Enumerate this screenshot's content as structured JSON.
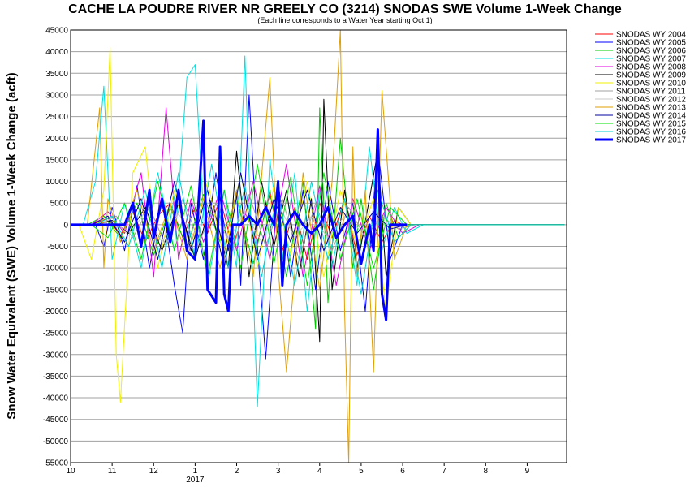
{
  "chart_data": {
    "type": "line",
    "title": "CACHE LA POUDRE RIVER NR GREELY CO (3214) SNODAS SWE Volume 1-Week Change",
    "subtitle": "(Each line corresponds to a Water Year starting Oct 1)",
    "ylabel": "Snow Water Equivalent (SWE) Volume 1-Week Change (acft)",
    "xlabel": "",
    "ylim": [
      -55000,
      45000
    ],
    "ytick_step": 5000,
    "xlim": [
      10,
      21.95
    ],
    "x_ticks": [
      {
        "value": 10,
        "label": "10"
      },
      {
        "value": 11,
        "label": "11"
      },
      {
        "value": 12,
        "label": "12"
      },
      {
        "value": 13,
        "label": "1"
      },
      {
        "value": 14,
        "label": "2"
      },
      {
        "value": 15,
        "label": "3"
      },
      {
        "value": 16,
        "label": "4"
      },
      {
        "value": 17,
        "label": "5"
      },
      {
        "value": 18,
        "label": "6"
      },
      {
        "value": 19,
        "label": "7"
      },
      {
        "value": 20,
        "label": "8"
      },
      {
        "value": 21,
        "label": "9"
      }
    ],
    "year_label": {
      "value": 13,
      "label": "2017"
    },
    "grid": true,
    "legend_position": "right",
    "series": [
      {
        "name": "SNODAS WY 2004",
        "color": "#ff0000",
        "width": 1,
        "x": [
          10,
          10.5,
          10.9,
          11.2,
          11.5,
          11.8,
          12.1,
          12.4,
          12.7,
          13.0,
          13.3,
          13.6,
          13.9,
          14.2,
          14.5,
          14.8,
          15.1,
          15.4,
          15.7,
          16.0,
          16.3,
          16.6,
          16.9,
          17.2,
          17.5,
          17.8,
          18.0,
          18.5,
          21.9
        ],
        "y": [
          0,
          0,
          1500,
          -2500,
          3000,
          -4000,
          2000,
          5000,
          -3000,
          4000,
          -2000,
          6000,
          -5000,
          3000,
          -4000,
          7000,
          -6000,
          4000,
          -8000,
          5000,
          -3000,
          6000,
          -7000,
          2000,
          -4000,
          1000,
          0,
          0,
          0
        ]
      },
      {
        "name": "SNODAS WY 2005",
        "color": "#0000ff",
        "width": 1,
        "x": [
          10,
          10.6,
          10.8,
          11.0,
          11.3,
          11.6,
          11.9,
          12.2,
          12.5,
          12.7,
          12.9,
          13.2,
          13.5,
          13.8,
          14.0,
          14.1,
          14.3,
          14.5,
          14.7,
          15.0,
          15.3,
          15.6,
          15.9,
          16.2,
          16.5,
          16.8,
          17.1,
          17.4,
          17.7,
          18.0,
          18.5,
          21.9
        ],
        "y": [
          0,
          0,
          -5000,
          4000,
          -6000,
          9000,
          -10000,
          6000,
          -14000,
          -25000,
          5000,
          -8000,
          12000,
          -6000,
          8000,
          -14000,
          30000,
          -5000,
          -31000,
          10000,
          -12000,
          8000,
          -15000,
          10000,
          -6000,
          5000,
          -20000,
          18000,
          -8000,
          0,
          0,
          0
        ]
      },
      {
        "name": "SNODAS WY 2006",
        "color": "#00cc00",
        "width": 1,
        "x": [
          10,
          10.4,
          10.8,
          11.2,
          11.6,
          12.0,
          12.4,
          12.8,
          13.2,
          13.6,
          14.0,
          14.4,
          14.8,
          15.2,
          15.6,
          15.9,
          16.0,
          16.2,
          16.5,
          16.8,
          17.0,
          17.3,
          17.6,
          17.9,
          18.2,
          18.6,
          21.9
        ],
        "y": [
          0,
          0,
          2000,
          -3000,
          5000,
          -7000,
          4000,
          -5000,
          7000,
          -4000,
          6000,
          -9000,
          8000,
          -12000,
          10000,
          -24000,
          27000,
          -18000,
          20000,
          -10000,
          6000,
          -15000,
          5000,
          -3000,
          0,
          0,
          0
        ]
      },
      {
        "name": "SNODAS WY 2007",
        "color": "#00e0e0",
        "width": 1,
        "x": [
          10,
          10.3,
          10.6,
          10.8,
          11.0,
          11.3,
          11.7,
          12.1,
          12.5,
          12.8,
          13.0,
          13.3,
          13.7,
          14.0,
          14.2,
          14.5,
          14.8,
          15.1,
          15.4,
          15.7,
          16.0,
          16.3,
          16.6,
          16.9,
          17.2,
          17.5,
          17.8,
          18.1,
          18.5,
          21.9
        ],
        "y": [
          0,
          0,
          10000,
          32000,
          -8000,
          5000,
          -10000,
          12000,
          -6000,
          34000,
          37000,
          -14000,
          8000,
          -10000,
          39000,
          -42000,
          15000,
          -8000,
          12000,
          -20000,
          8000,
          -10000,
          6000,
          -14000,
          18000,
          -6000,
          4000,
          -2000,
          0,
          0
        ]
      },
      {
        "name": "SNODAS WY 2008",
        "color": "#e000e0",
        "width": 1,
        "x": [
          10,
          10.5,
          10.9,
          11.3,
          11.7,
          12.0,
          12.3,
          12.6,
          12.9,
          13.2,
          13.6,
          14.0,
          14.4,
          14.8,
          15.2,
          15.6,
          16.0,
          16.4,
          16.8,
          17.2,
          17.6,
          18.0,
          18.4,
          21.9
        ],
        "y": [
          0,
          0,
          3000,
          -2000,
          12000,
          -12000,
          27000,
          -8000,
          6000,
          -4000,
          8000,
          -6000,
          10000,
          -8000,
          14000,
          -12000,
          9000,
          -14000,
          6000,
          -6000,
          4000,
          -2000,
          0,
          0
        ]
      },
      {
        "name": "SNODAS WY 2009",
        "color": "#000000",
        "width": 1,
        "x": [
          10,
          10.6,
          11.0,
          11.4,
          11.8,
          12.2,
          12.6,
          13.0,
          13.4,
          13.8,
          14.0,
          14.3,
          14.6,
          14.9,
          15.2,
          15.5,
          15.8,
          16.0,
          16.1,
          16.3,
          16.6,
          16.9,
          17.2,
          17.4,
          17.6,
          17.9,
          18.2,
          18.6,
          21.9
        ],
        "y": [
          0,
          0,
          1000,
          -2000,
          4000,
          -6000,
          5000,
          -8000,
          6000,
          -10000,
          17000,
          -12000,
          10000,
          -5000,
          8000,
          -12000,
          6000,
          -27000,
          29000,
          -15000,
          8000,
          -10000,
          6000,
          17000,
          -12000,
          4000,
          0,
          0,
          0
        ]
      },
      {
        "name": "SNODAS WY 2010",
        "color": "#f0f000",
        "width": 1,
        "x": [
          10,
          10.2,
          10.5,
          10.8,
          10.95,
          11.1,
          11.2,
          11.5,
          11.8,
          12.1,
          12.5,
          12.9,
          13.3,
          13.7,
          14.1,
          14.5,
          14.9,
          15.3,
          15.7,
          16.1,
          16.5,
          16.9,
          17.3,
          17.6,
          17.9,
          18.2,
          18.6,
          21.9
        ],
        "y": [
          0,
          0,
          -8000,
          8000,
          41000,
          -30000,
          -41000,
          12000,
          18000,
          -10000,
          8000,
          -6000,
          10000,
          -8000,
          12000,
          -10000,
          9000,
          -7000,
          10000,
          -12000,
          8000,
          -5000,
          6000,
          -20000,
          4000,
          0,
          0,
          0
        ]
      },
      {
        "name": "SNODAS WY 2011",
        "color": "#a0a0a0",
        "width": 1,
        "x": [
          10,
          10.7,
          11.1,
          11.5,
          11.9,
          12.3,
          12.7,
          13.1,
          13.5,
          13.9,
          14.3,
          14.7,
          15.1,
          15.5,
          15.9,
          16.3,
          16.7,
          17.1,
          17.5,
          17.9,
          18.3,
          21.9
        ],
        "y": [
          0,
          0,
          2000,
          -3000,
          4000,
          -5000,
          6000,
          -4000,
          5000,
          -6000,
          7000,
          -5000,
          6000,
          -8000,
          5000,
          -6000,
          4000,
          -3000,
          2000,
          -1000,
          0,
          0
        ]
      },
      {
        "name": "SNODAS WY 2012",
        "color": "#c8c8c8",
        "width": 1,
        "x": [
          10,
          10.6,
          11.0,
          11.4,
          11.8,
          12.2,
          12.6,
          13.0,
          13.4,
          13.8,
          14.2,
          14.6,
          15.0,
          15.4,
          15.8,
          16.2,
          16.6,
          17.0,
          17.4,
          17.8,
          18.2,
          21.9
        ],
        "y": [
          0,
          0,
          1500,
          -2500,
          3000,
          -4000,
          2500,
          -3000,
          4000,
          -3500,
          3000,
          -4000,
          5000,
          -3000,
          2000,
          -3000,
          2000,
          -1500,
          1000,
          -500,
          0,
          0
        ]
      },
      {
        "name": "SNODAS WY 2013",
        "color": "#e0a000",
        "width": 1,
        "x": [
          10,
          10.4,
          10.7,
          10.8,
          10.9,
          11.2,
          11.6,
          12.0,
          12.4,
          12.8,
          13.2,
          13.6,
          14.0,
          14.4,
          14.8,
          15.0,
          15.2,
          15.6,
          16.0,
          16.3,
          16.5,
          16.6,
          16.7,
          16.8,
          16.9,
          17.1,
          17.3,
          17.5,
          17.8,
          18.1,
          18.5,
          21.9
        ],
        "y": [
          0,
          0,
          27000,
          -10000,
          6000,
          -4000,
          8000,
          -6000,
          5000,
          -8000,
          6000,
          -10000,
          8000,
          -12000,
          34000,
          -10000,
          -34000,
          12000,
          -15000,
          10000,
          45000,
          -20000,
          -55000,
          18000,
          -12000,
          8000,
          -34000,
          31000,
          -8000,
          0,
          0,
          0
        ]
      },
      {
        "name": "SNODAS WY 2014",
        "color": "#0000a0",
        "width": 1,
        "x": [
          10,
          10.5,
          10.9,
          11.3,
          11.7,
          12.1,
          12.5,
          12.9,
          13.3,
          13.7,
          14.1,
          14.5,
          14.9,
          15.3,
          15.7,
          16.1,
          16.5,
          16.9,
          17.3,
          17.7,
          18.1,
          18.5,
          21.9
        ],
        "y": [
          0,
          0,
          2000,
          -4000,
          6000,
          -8000,
          10000,
          -6000,
          8000,
          -10000,
          12000,
          -8000,
          6000,
          -4000,
          8000,
          -6000,
          4000,
          -2000,
          3000,
          -1000,
          0,
          0,
          0
        ]
      },
      {
        "name": "SNODAS WY 2015",
        "color": "#00e000",
        "width": 1,
        "x": [
          10,
          10.5,
          10.9,
          11.3,
          11.7,
          12.1,
          12.5,
          12.9,
          13.3,
          13.7,
          14.1,
          14.5,
          14.9,
          15.3,
          15.7,
          16.1,
          16.5,
          16.9,
          17.3,
          17.7,
          18.1,
          18.5,
          21.9
        ],
        "y": [
          0,
          0,
          -3000,
          5000,
          -8000,
          10000,
          -6000,
          9000,
          -12000,
          8000,
          -10000,
          14000,
          -9000,
          11000,
          -14000,
          12000,
          -8000,
          6000,
          -10000,
          4000,
          0,
          0,
          0
        ]
      },
      {
        "name": "SNODAS WY 2016",
        "color": "#00d0d0",
        "width": 1,
        "x": [
          10,
          10.6,
          11.0,
          11.4,
          11.8,
          12.2,
          12.6,
          13.0,
          13.4,
          13.8,
          14.2,
          14.6,
          15.0,
          15.4,
          15.8,
          16.2,
          16.6,
          17.0,
          17.4,
          17.8,
          18.2,
          19.0,
          20.0,
          21.0,
          21.9
        ],
        "y": [
          0,
          0,
          2000,
          -5000,
          8000,
          -10000,
          12000,
          -8000,
          14000,
          -10000,
          9000,
          -12000,
          8000,
          -14000,
          10000,
          -8000,
          6000,
          -16000,
          8000,
          -4000,
          0,
          0,
          0,
          0,
          0
        ]
      },
      {
        "name": "SNODAS WY 2017",
        "color": "#0000ff",
        "width": 3,
        "x": [
          10,
          10.3,
          11.0,
          11.3,
          11.5,
          11.7,
          11.9,
          12.0,
          12.2,
          12.4,
          12.6,
          12.8,
          13.0,
          13.2,
          13.3,
          13.5,
          13.6,
          13.7,
          13.8,
          13.9,
          14.1,
          14.3,
          14.5,
          14.7,
          14.9,
          15.0,
          15.1,
          15.2,
          15.4,
          15.6,
          15.8,
          16.0,
          16.2,
          16.4,
          16.6,
          16.8,
          17.0,
          17.2,
          17.3,
          17.4,
          17.5,
          17.6,
          17.7,
          17.8,
          17.9,
          18.0,
          18.1
        ],
        "y": [
          0,
          0,
          0,
          0,
          5000,
          -5000,
          8000,
          -3000,
          6000,
          -4000,
          8000,
          -6000,
          -8000,
          24000,
          -15000,
          -18000,
          18000,
          -16000,
          -20000,
          0,
          0,
          2000,
          0,
          4000,
          0,
          10000,
          -14000,
          0,
          3000,
          0,
          -2000,
          0,
          4000,
          -3000,
          0,
          2000,
          -9000,
          0,
          -6000,
          22000,
          -16000,
          -22000,
          0,
          0,
          0,
          0,
          0
        ]
      }
    ]
  }
}
